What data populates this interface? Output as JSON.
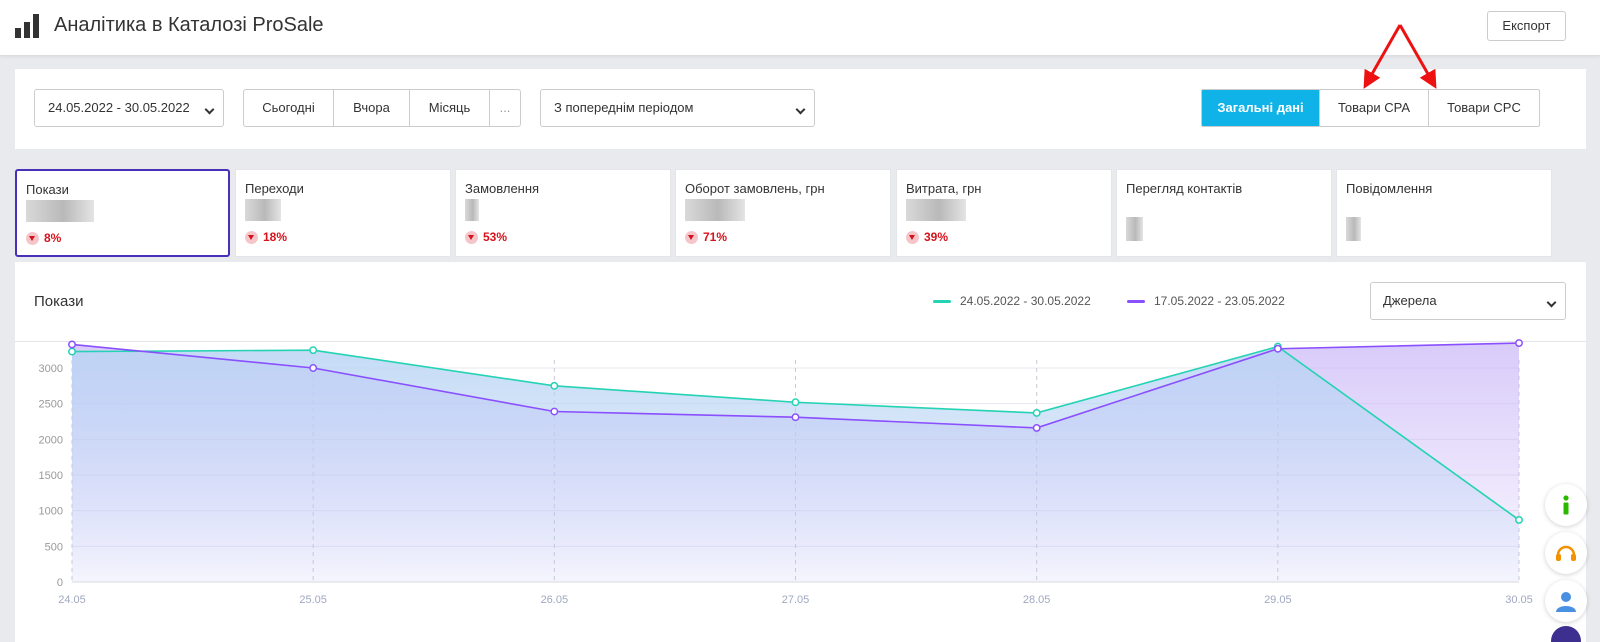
{
  "header": {
    "title": "Аналітика в Каталозі ProSale",
    "export_label": "Експорт"
  },
  "filters": {
    "date_range": "24.05.2022 - 30.05.2022",
    "quick_periods": [
      "Сьогодні",
      "Вчора",
      "Місяць",
      "..."
    ],
    "compare_mode": "З попереднім періодом",
    "view_tabs": [
      {
        "label": "Загальні дані",
        "active": true
      },
      {
        "label": "Товари CPA",
        "active": false
      },
      {
        "label": "Товари CPC",
        "active": false
      }
    ]
  },
  "metric_cards": [
    {
      "label": "Покази",
      "change": "8%",
      "active": true
    },
    {
      "label": "Переходи",
      "change": "18%",
      "active": false
    },
    {
      "label": "Замовлення",
      "change": "53%",
      "active": false
    },
    {
      "label": "Оборот замовлень, грн",
      "change": "71%",
      "active": false
    },
    {
      "label": "Витрата, грн",
      "change": "39%",
      "active": false
    },
    {
      "label": "Перегляд контактів",
      "change": "",
      "active": false
    },
    {
      "label": "Повідомлення",
      "change": "",
      "active": false
    }
  ],
  "chart_panel": {
    "title": "Покази",
    "source_select": "Джерела"
  },
  "chart_data": {
    "type": "line",
    "title": "Покази",
    "x": [
      "24.05",
      "25.05",
      "26.05",
      "27.05",
      "28.05",
      "29.05",
      "30.05"
    ],
    "y_ticks": [
      0,
      500,
      1000,
      1500,
      2000,
      2500,
      3000
    ],
    "ylim": [
      0,
      3400
    ],
    "grid": true,
    "legend": "top-right",
    "series": [
      {
        "name": "24.05.2022 - 30.05.2022",
        "color": "#24d3b3",
        "values": [
          3230,
          3250,
          2750,
          2520,
          2370,
          3300,
          870
        ]
      },
      {
        "name": "17.05.2022 - 23.05.2022",
        "color": "#8a4fff",
        "values": [
          3330,
          3000,
          2390,
          2310,
          2160,
          3270,
          3350
        ]
      }
    ]
  },
  "side_buttons": [
    {
      "icon": "info-icon",
      "color": "#2db800"
    },
    {
      "icon": "support-headset-icon",
      "color": "#f39200"
    },
    {
      "icon": "user-icon",
      "color": "#4a90e2"
    }
  ]
}
